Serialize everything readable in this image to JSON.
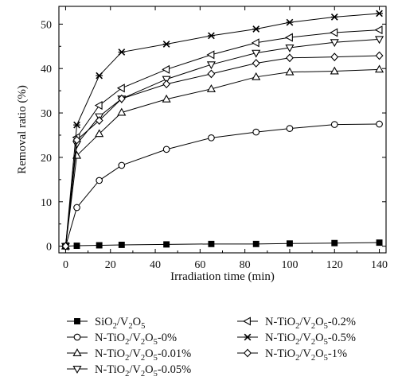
{
  "chart_data": {
    "type": "line",
    "xlabel": "Irradiation time (min)",
    "ylabel": "Removal ratio (%)",
    "xlim": [
      -3,
      143
    ],
    "ylim": [
      -1.5,
      54
    ],
    "xticks": [
      0,
      20,
      40,
      60,
      80,
      100,
      120,
      140
    ],
    "yticks": [
      0,
      10,
      20,
      30,
      40,
      50
    ],
    "grid": false,
    "legend_position": "bottom",
    "x": [
      0,
      5,
      15,
      25,
      45,
      65,
      85,
      100,
      120,
      140
    ],
    "series": [
      {
        "name": "SiO₂/V₂O₅",
        "label_parts": [
          [
            "SiO",
            false
          ],
          [
            "2",
            true
          ],
          [
            "/V",
            false
          ],
          [
            "2",
            true
          ],
          [
            "O",
            false
          ],
          [
            "5",
            true
          ]
        ],
        "marker": "square",
        "values": [
          0,
          0.1,
          0.2,
          0.3,
          0.4,
          0.5,
          0.5,
          0.6,
          0.7,
          0.8
        ]
      },
      {
        "name": "N-TiO₂/V₂O₅-0%",
        "label_parts": [
          [
            "N-TiO",
            false
          ],
          [
            "2",
            true
          ],
          [
            "/V",
            false
          ],
          [
            "2",
            true
          ],
          [
            "O",
            false
          ],
          [
            "5",
            true
          ],
          [
            "-0%",
            false
          ]
        ],
        "marker": "circle",
        "values": [
          0,
          8.7,
          14.8,
          18.2,
          21.8,
          24.4,
          25.7,
          26.5,
          27.4,
          27.5
        ]
      },
      {
        "name": "N-TiO₂/V₂O₅-0.01%",
        "label_parts": [
          [
            "N-TiO",
            false
          ],
          [
            "2",
            true
          ],
          [
            "/V",
            false
          ],
          [
            "2",
            true
          ],
          [
            "O",
            false
          ],
          [
            "5",
            true
          ],
          [
            "-0.01%",
            false
          ]
        ],
        "marker": "triangle-up",
        "values": [
          0,
          20.4,
          25.3,
          30.1,
          33.1,
          35.4,
          38.1,
          39.2,
          39.4,
          39.8
        ]
      },
      {
        "name": "N-TiO₂/V₂O₅-0.05%",
        "label_parts": [
          [
            "N-TiO",
            false
          ],
          [
            "2",
            true
          ],
          [
            "/V",
            false
          ],
          [
            "2",
            true
          ],
          [
            "O",
            false
          ],
          [
            "5",
            true
          ],
          [
            "-0.05%",
            false
          ]
        ],
        "marker": "triangle-down",
        "values": [
          0,
          23.0,
          29.2,
          33.2,
          37.6,
          40.9,
          43.5,
          44.7,
          45.9,
          46.6
        ]
      },
      {
        "name": "N-TiO₂/V₂O₅-0.2%",
        "label_parts": [
          [
            "N-TiO",
            false
          ],
          [
            "2",
            true
          ],
          [
            "/V",
            false
          ],
          [
            "2",
            true
          ],
          [
            "O",
            false
          ],
          [
            "5",
            true
          ],
          [
            "-0.2%",
            false
          ]
        ],
        "marker": "triangle-left",
        "values": [
          0,
          24.5,
          31.7,
          35.6,
          39.8,
          43.1,
          45.8,
          47.0,
          48.1,
          48.7
        ]
      },
      {
        "name": "N-TiO₂/V₂O₅-0.5%",
        "label_parts": [
          [
            "N-TiO",
            false
          ],
          [
            "2",
            true
          ],
          [
            "/V",
            false
          ],
          [
            "2",
            true
          ],
          [
            "O",
            false
          ],
          [
            "5",
            true
          ],
          [
            "-0.5%",
            false
          ]
        ],
        "marker": "star",
        "values": [
          0,
          27.3,
          38.4,
          43.7,
          45.5,
          47.4,
          48.9,
          50.4,
          51.6,
          52.4
        ]
      },
      {
        "name": "N-TiO₂/V₂O₅-1%",
        "label_parts": [
          [
            "N-TiO",
            false
          ],
          [
            "2",
            true
          ],
          [
            "/V",
            false
          ],
          [
            "2",
            true
          ],
          [
            "O",
            false
          ],
          [
            "5",
            true
          ],
          [
            "-1%",
            false
          ]
        ],
        "marker": "diamond",
        "values": [
          0,
          23.9,
          28.3,
          33.2,
          36.5,
          38.8,
          41.2,
          42.4,
          42.6,
          42.9
        ]
      }
    ]
  }
}
